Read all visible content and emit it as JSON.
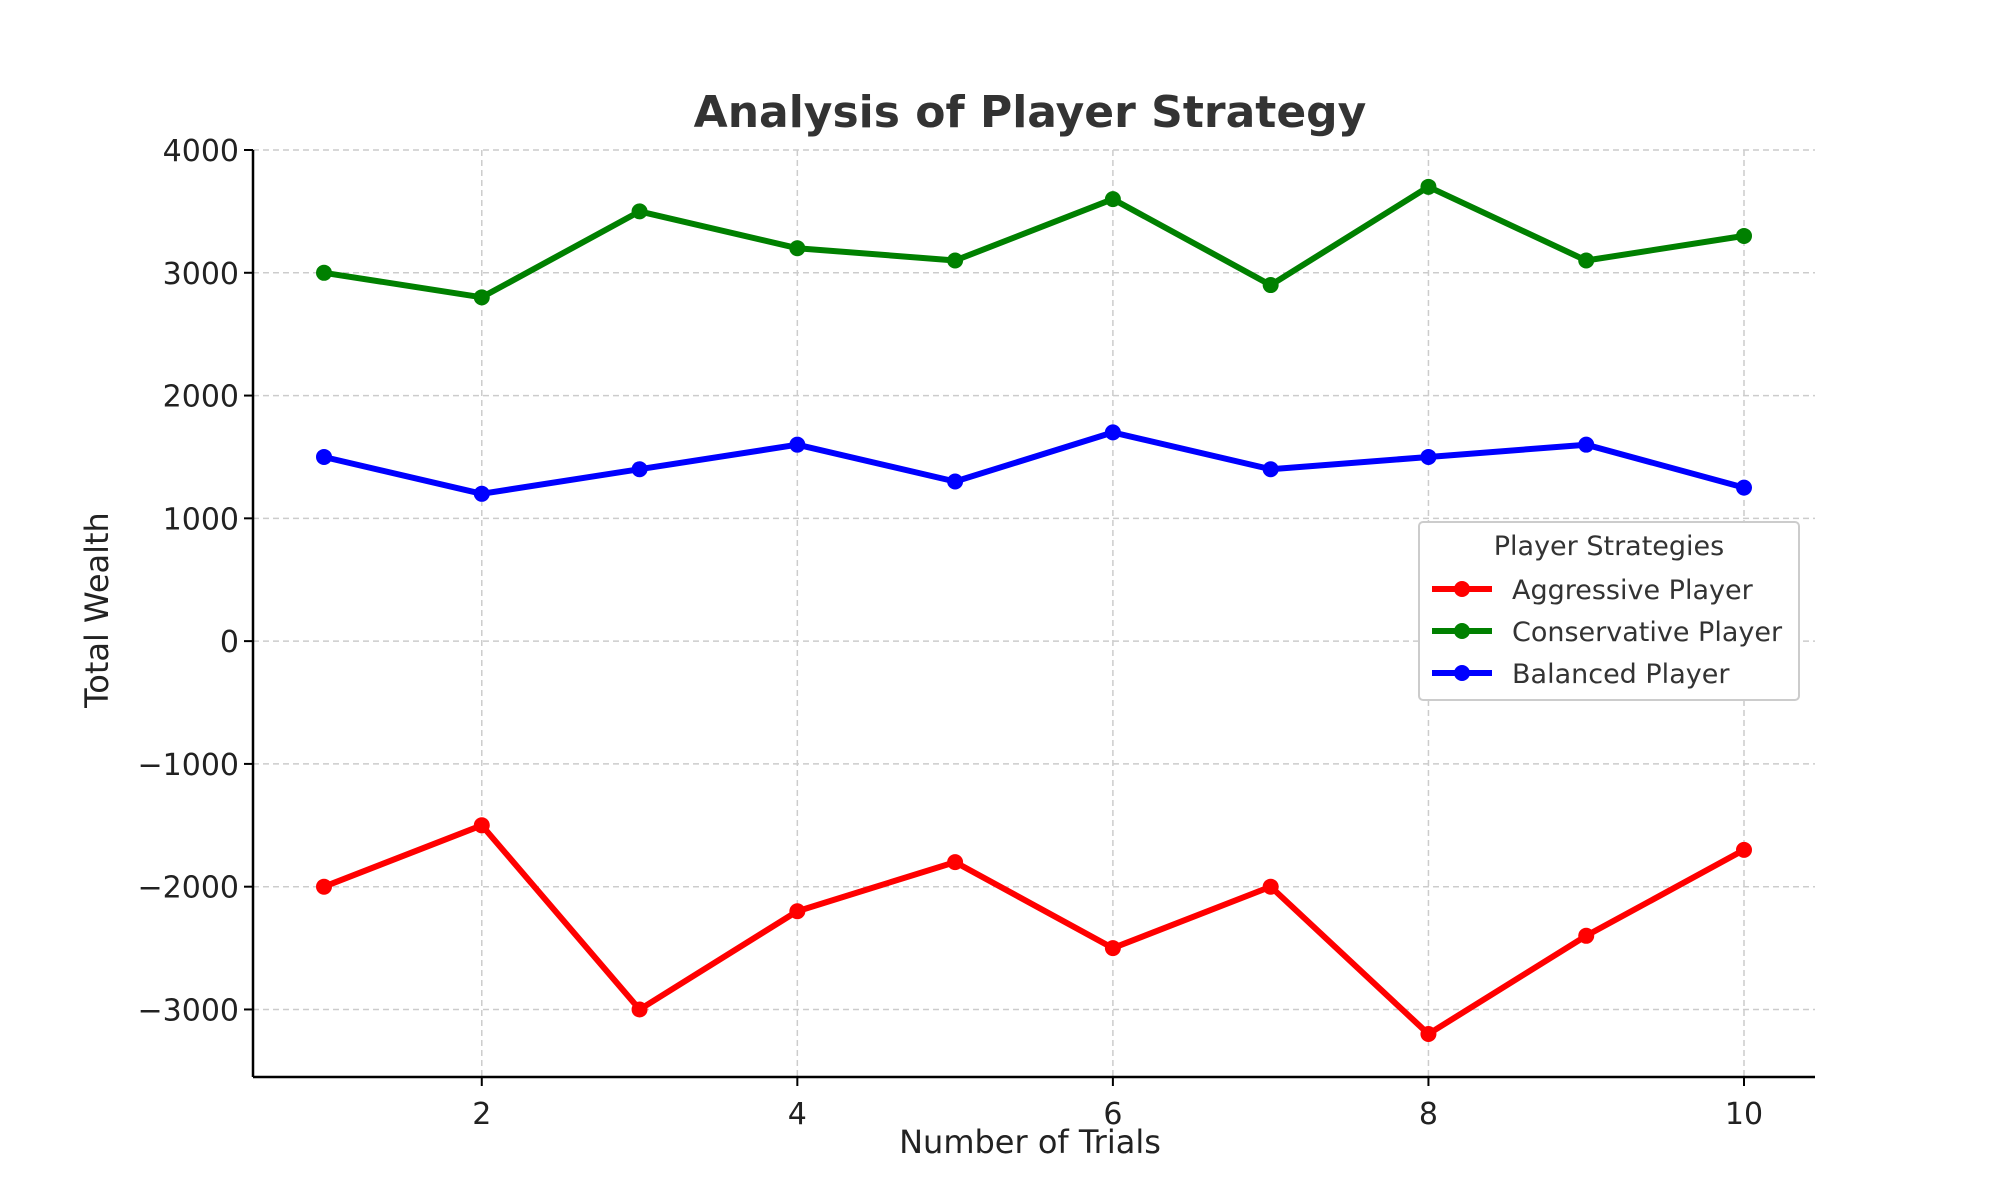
{
  "chart_data": {
    "type": "line",
    "title": "Analysis of Player Strategy",
    "xlabel": "Number of Trials",
    "ylabel": "Total Wealth",
    "x": [
      1,
      2,
      3,
      4,
      5,
      6,
      7,
      8,
      9,
      10
    ],
    "xlim": [
      0.55,
      10.45
    ],
    "ylim": [
      -3550,
      4000
    ],
    "xticks": [
      2,
      4,
      6,
      8,
      10
    ],
    "yticks": [
      -3000,
      -2000,
      -1000,
      0,
      1000,
      2000,
      3000,
      4000
    ],
    "xtick_labels": [
      "2",
      "4",
      "6",
      "8",
      "10"
    ],
    "ytick_labels": [
      "−3000",
      "−2000",
      "−1000",
      "0",
      "1000",
      "2000",
      "3000",
      "4000"
    ],
    "grid": true,
    "legend": {
      "title": "Player Strategies",
      "placement": "center-right"
    },
    "series": [
      {
        "name": "Aggressive Player",
        "color": "#ff0000",
        "values": [
          -2000,
          -1500,
          -3000,
          -2200,
          -1800,
          -2500,
          -2000,
          -3200,
          -2400,
          -1700
        ]
      },
      {
        "name": "Conservative Player",
        "color": "#008000",
        "values": [
          3000,
          2800,
          3500,
          3200,
          3100,
          3600,
          2900,
          3700,
          3100,
          3300
        ]
      },
      {
        "name": "Balanced Player",
        "color": "#0000ff",
        "values": [
          1500,
          1200,
          1400,
          1600,
          1300,
          1700,
          1400,
          1500,
          1600,
          1250
        ]
      }
    ]
  }
}
